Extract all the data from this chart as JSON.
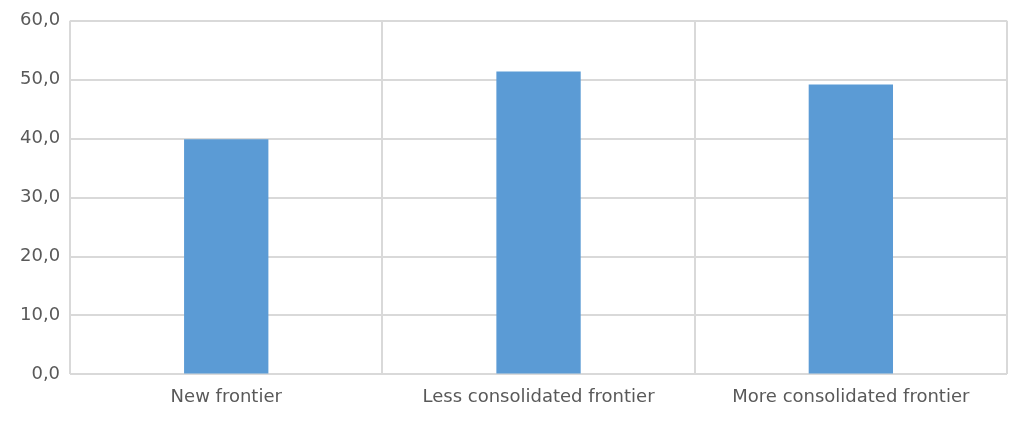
{
  "chart_data": {
    "type": "bar",
    "categories": [
      "New frontier",
      "Less consolidated frontier",
      "More consolidated frontier"
    ],
    "series": [
      {
        "color": "#5b9bd5",
        "values": [
          39.9,
          51.4,
          49.2
        ]
      }
    ],
    "ylim": [
      0,
      60
    ],
    "yticks": [
      {
        "value": 0,
        "label": "0,0"
      },
      {
        "value": 10,
        "label": "10,0"
      },
      {
        "value": 20,
        "label": "20,0"
      },
      {
        "value": 30,
        "label": "30,0"
      },
      {
        "value": 40,
        "label": "40,0"
      },
      {
        "value": 50,
        "label": "50,0"
      },
      {
        "value": 60,
        "label": "60,0"
      }
    ],
    "grid": true,
    "legend": false
  }
}
